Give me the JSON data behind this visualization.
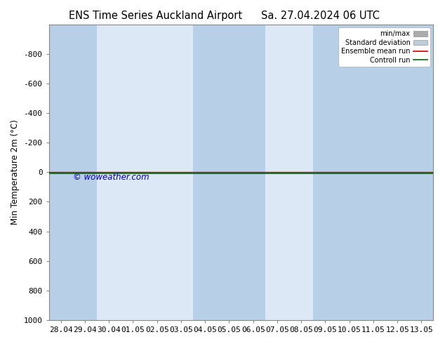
{
  "title_left": "ENS Time Series Auckland Airport",
  "title_right": "Sa. 27.04.2024 06 UTC",
  "ylabel": "Min Temperature 2m (°C)",
  "ylim": [
    -1000,
    1000
  ],
  "yticks": [
    -800,
    -600,
    -400,
    -200,
    0,
    200,
    400,
    600,
    800,
    1000
  ],
  "xtick_labels": [
    "28.04",
    "29.04",
    "30.04",
    "01.05",
    "02.05",
    "03.05",
    "04.05",
    "05.05",
    "06.05",
    "07.05",
    "08.05",
    "09.05",
    "10.05",
    "11.05",
    "12.05",
    "13.05"
  ],
  "bg_color": "#ffffff",
  "plot_bg_color": "#dce8f5",
  "stripe_color": "#b8cfe8",
  "stripe_x_indices": [
    0,
    1,
    6,
    7,
    8,
    11,
    12,
    13,
    14,
    15
  ],
  "ensemble_mean_color": "#cc0000",
  "control_run_color": "#006600",
  "watermark": "© woweather.com",
  "watermark_color": "#0000bb",
  "legend_labels": [
    "min/max",
    "Standard deviation",
    "Ensemble mean run",
    "Controll run"
  ],
  "minmax_legend_color": "#aaaaaa",
  "std_legend_color": "#bbccdd",
  "title_fontsize": 10.5,
  "axis_fontsize": 8.5,
  "tick_fontsize": 8
}
